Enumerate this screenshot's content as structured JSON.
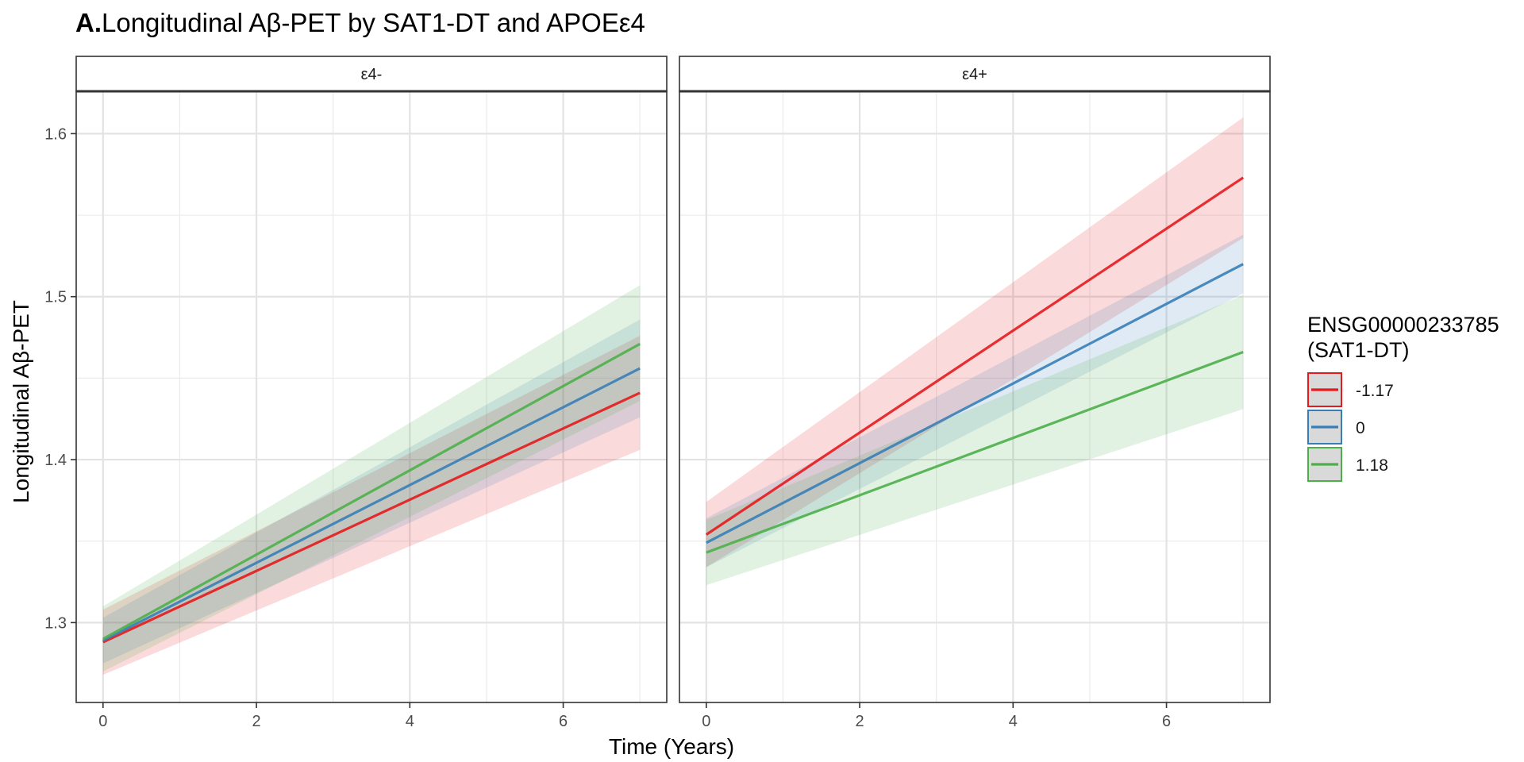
{
  "chart_data": {
    "type": "line",
    "title_prefix": "A.",
    "title_text": "Longitudinal Aβ-PET by SAT1-DT and APOEε4",
    "xlabel": "Time (Years)",
    "ylabel": "Longitudinal Aβ-PET",
    "xlim": [
      -0.35,
      7.35
    ],
    "ylim": [
      1.251,
      1.626
    ],
    "x_ticks": [
      0,
      2,
      4,
      6
    ],
    "x_tick_labels": [
      "0",
      "2",
      "4",
      "6"
    ],
    "y_ticks": [
      1.3,
      1.4,
      1.5,
      1.6
    ],
    "y_tick_labels": [
      "1.3",
      "1.4",
      "1.5",
      "1.6"
    ],
    "grid": true,
    "legend": {
      "title_line1": "ENSG00000233785",
      "title_line2": "(SAT1-DT)",
      "placement": "right",
      "entries": [
        "-1.17",
        "0",
        "1.18"
      ]
    },
    "colors": {
      "-1.17": "#e41a1c",
      "0": "#377eb8",
      "1.18": "#4daf4a"
    },
    "panels": [
      {
        "label": "ε4-",
        "series": [
          {
            "name": "-1.17",
            "x": [
              0,
              7
            ],
            "y": [
              1.288,
              1.441
            ],
            "lower": [
              1.268,
              1.406
            ],
            "upper": [
              1.308,
              1.476
            ]
          },
          {
            "name": "0",
            "x": [
              0,
              7
            ],
            "y": [
              1.289,
              1.456
            ],
            "lower": [
              1.275,
              1.426
            ],
            "upper": [
              1.303,
              1.486
            ]
          },
          {
            "name": "1.18",
            "x": [
              0,
              7
            ],
            "y": [
              1.29,
              1.471
            ],
            "lower": [
              1.27,
              1.436
            ],
            "upper": [
              1.31,
              1.507
            ]
          }
        ]
      },
      {
        "label": "ε4+",
        "series": [
          {
            "name": "-1.17",
            "x": [
              0,
              7
            ],
            "y": [
              1.354,
              1.573
            ],
            "lower": [
              1.334,
              1.536
            ],
            "upper": [
              1.374,
              1.61
            ]
          },
          {
            "name": "0",
            "x": [
              0,
              7
            ],
            "y": [
              1.349,
              1.52
            ],
            "lower": [
              1.334,
              1.502
            ],
            "upper": [
              1.364,
              1.538
            ]
          },
          {
            "name": "1.18",
            "x": [
              0,
              7
            ],
            "y": [
              1.343,
              1.466
            ],
            "lower": [
              1.323,
              1.431
            ],
            "upper": [
              1.363,
              1.501
            ]
          }
        ]
      }
    ]
  }
}
